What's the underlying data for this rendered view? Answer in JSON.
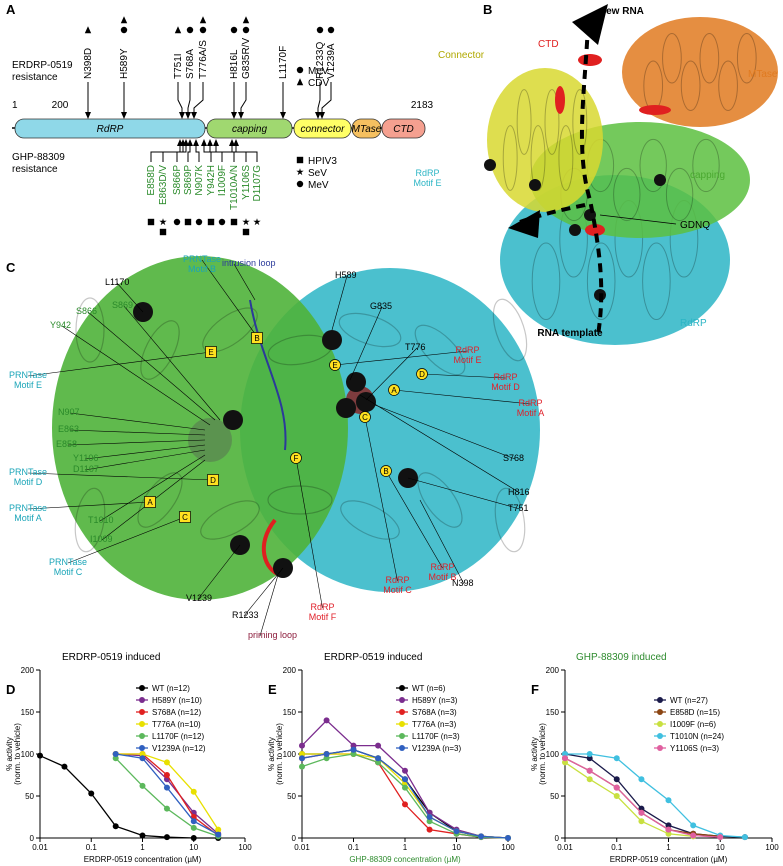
{
  "panel_a": {
    "letter": "A",
    "top_group": [
      "ERDRP-0519",
      "resistance"
    ],
    "bottom_group": [
      "GHP-88309",
      "resistance"
    ],
    "positions": [
      1,
      200,
      2183
    ],
    "domains": [
      "RdRP",
      "capping",
      "connector",
      "MTase",
      "CTD"
    ],
    "top_mutations": [
      "N398D",
      "H589Y",
      "T751I",
      "S768A",
      "T776A/S",
      "H816L",
      "G835R/V",
      "L1170F",
      "R1233Q",
      "V1239A"
    ],
    "bottom_mutations": [
      "E858D",
      "E863D/V",
      "S866P",
      "S869P",
      "N907K",
      "Y942H",
      "I1009F",
      "T1010A/N",
      "Y1106S",
      "D1107G"
    ],
    "top_legend": [
      "MeV",
      "CDV"
    ],
    "bottom_legend": [
      "HPIV3",
      "SeV",
      "MeV"
    ]
  },
  "panel_b": {
    "letter": "B",
    "labels": [
      "new RNA",
      "CTD",
      "MTase",
      "Connector",
      "capping",
      "GDNQ",
      "RdRP",
      "RNA template"
    ]
  },
  "side_label": "RdRP Motif E",
  "panel_c": {
    "letter": "C",
    "labels": [
      "PRNTase Motif B",
      "intrusion loop",
      "L1170",
      "H589",
      "G835",
      "S866",
      "S869",
      "Y942",
      "T776",
      "PRNTase Motif E",
      "RdRP Motif E",
      "N907",
      "RdRP Motif D",
      "E863",
      "RdRP Motif A",
      "E858",
      "Y1106",
      "D1107",
      "PRNTase Motif D",
      "S768",
      "H816",
      "PRNTase Motif A",
      "T751",
      "T1010",
      "I1009",
      "PRNTase Motif C",
      "RdRP Motif B",
      "RdRP Motif C",
      "N398",
      "V1239",
      "R1233",
      "RdRP Motif F",
      "priming loop"
    ],
    "motif_boxes": [
      "B",
      "E",
      "D",
      "A",
      "C",
      "E",
      "F",
      "D",
      "A",
      "C",
      "B"
    ]
  },
  "chart_data": [
    {
      "panel": "D",
      "type": "line",
      "title": "ERDRP-0519 induced",
      "title_color": "#000000",
      "xlabel": "ERDRP-0519 concentration (µM)",
      "xlabel_color": "#000000",
      "ylabel": [
        "% activity",
        "(norm. to vehicle)"
      ],
      "xscale": "log",
      "xlim": [
        0.01,
        100
      ],
      "ylim": [
        0,
        200
      ],
      "xticks": [
        0.01,
        0.1,
        1,
        10,
        100
      ],
      "yticks": [
        0,
        50,
        100,
        150,
        200
      ],
      "x": [
        0.01,
        0.03,
        0.1,
        0.3,
        1,
        3,
        10,
        30
      ],
      "series": [
        {
          "name": "WT (n=12)",
          "color": "#000000",
          "values": [
            98,
            85,
            53,
            14,
            3,
            1,
            0,
            0
          ]
        },
        {
          "name": "H589Y (n=10)",
          "color": "#7b2d8e",
          "values": [
            null,
            null,
            null,
            100,
            98,
            70,
            30,
            5
          ]
        },
        {
          "name": "S768A (n=12)",
          "color": "#e02020",
          "values": [
            null,
            null,
            null,
            100,
            100,
            75,
            25,
            3
          ]
        },
        {
          "name": "T776A (n=10)",
          "color": "#e8e000",
          "values": [
            null,
            null,
            null,
            100,
            100,
            90,
            55,
            10
          ]
        },
        {
          "name": "L1170F (n=12)",
          "color": "#5cb85c",
          "values": [
            null,
            null,
            null,
            95,
            62,
            35,
            12,
            2
          ]
        },
        {
          "name": "V1239A (n=12)",
          "color": "#3060c0",
          "values": [
            null,
            null,
            null,
            100,
            95,
            60,
            20,
            4
          ]
        }
      ]
    },
    {
      "panel": "E",
      "type": "line",
      "title": "ERDRP-0519 induced",
      "title_color": "#000000",
      "xlabel": "GHP-88309 concentration (µM)",
      "xlabel_color": "#2e8b2e",
      "ylabel": [
        "% activity",
        "(norm. to vehicle)"
      ],
      "xscale": "log",
      "xlim": [
        0.01,
        100
      ],
      "ylim": [
        0,
        200
      ],
      "xticks": [
        0.01,
        0.1,
        1,
        10,
        100
      ],
      "yticks": [
        0,
        50,
        100,
        150,
        200
      ],
      "x": [
        0.01,
        0.03,
        0.1,
        0.3,
        1,
        3,
        10,
        30,
        100
      ],
      "series": [
        {
          "name": "WT (n=6)",
          "color": "#000000",
          "values": [
            100,
            100,
            105,
            95,
            70,
            30,
            8,
            2,
            0
          ]
        },
        {
          "name": "H589Y (n=3)",
          "color": "#7b2d8e",
          "values": [
            110,
            140,
            110,
            110,
            80,
            30,
            10,
            2,
            0
          ]
        },
        {
          "name": "S768A (n=3)",
          "color": "#e02020",
          "values": [
            95,
            100,
            100,
            90,
            40,
            10,
            5,
            1,
            0
          ]
        },
        {
          "name": "T776A (n=3)",
          "color": "#e8e000",
          "values": [
            100,
            100,
            100,
            95,
            65,
            25,
            8,
            2,
            0
          ]
        },
        {
          "name": "L1170F (n=3)",
          "color": "#5cb85c",
          "values": [
            85,
            95,
            100,
            90,
            60,
            20,
            5,
            1,
            0
          ]
        },
        {
          "name": "V1239A (n=3)",
          "color": "#3060c0",
          "values": [
            95,
            100,
            105,
            95,
            70,
            25,
            8,
            2,
            0
          ]
        }
      ]
    },
    {
      "panel": "F",
      "type": "line",
      "title": "GHP-88309 induced",
      "title_color": "#2e8b2e",
      "xlabel": "ERDRP-0519 concentration (µM)",
      "xlabel_color": "#000000",
      "ylabel": [
        "% activity",
        "(norm. to vehicle)"
      ],
      "xscale": "log",
      "xlim": [
        0.01,
        100
      ],
      "ylim": [
        0,
        200
      ],
      "xticks": [
        0.01,
        0.1,
        1,
        10,
        100
      ],
      "yticks": [
        0,
        50,
        100,
        150,
        200
      ],
      "x": [
        0.01,
        0.03,
        0.1,
        0.3,
        1,
        3,
        10,
        30
      ],
      "series": [
        {
          "name": "WT (n=27)",
          "color": "#1a1a4a",
          "values": [
            100,
            95,
            70,
            35,
            15,
            5,
            2,
            1
          ]
        },
        {
          "name": "E858D (n=15)",
          "color": "#8b4513",
          "values": [
            95,
            80,
            60,
            30,
            10,
            5,
            2,
            null
          ]
        },
        {
          "name": "I1009F (n=6)",
          "color": "#c8e040",
          "values": [
            90,
            70,
            50,
            20,
            5,
            2,
            null,
            null
          ]
        },
        {
          "name": "T1010N (n=24)",
          "color": "#40c0e0",
          "values": [
            100,
            100,
            95,
            70,
            45,
            15,
            3,
            1
          ]
        },
        {
          "name": "Y1106S (n=3)",
          "color": "#e060a0",
          "values": [
            95,
            80,
            60,
            30,
            10,
            3,
            1,
            null
          ]
        }
      ]
    }
  ]
}
